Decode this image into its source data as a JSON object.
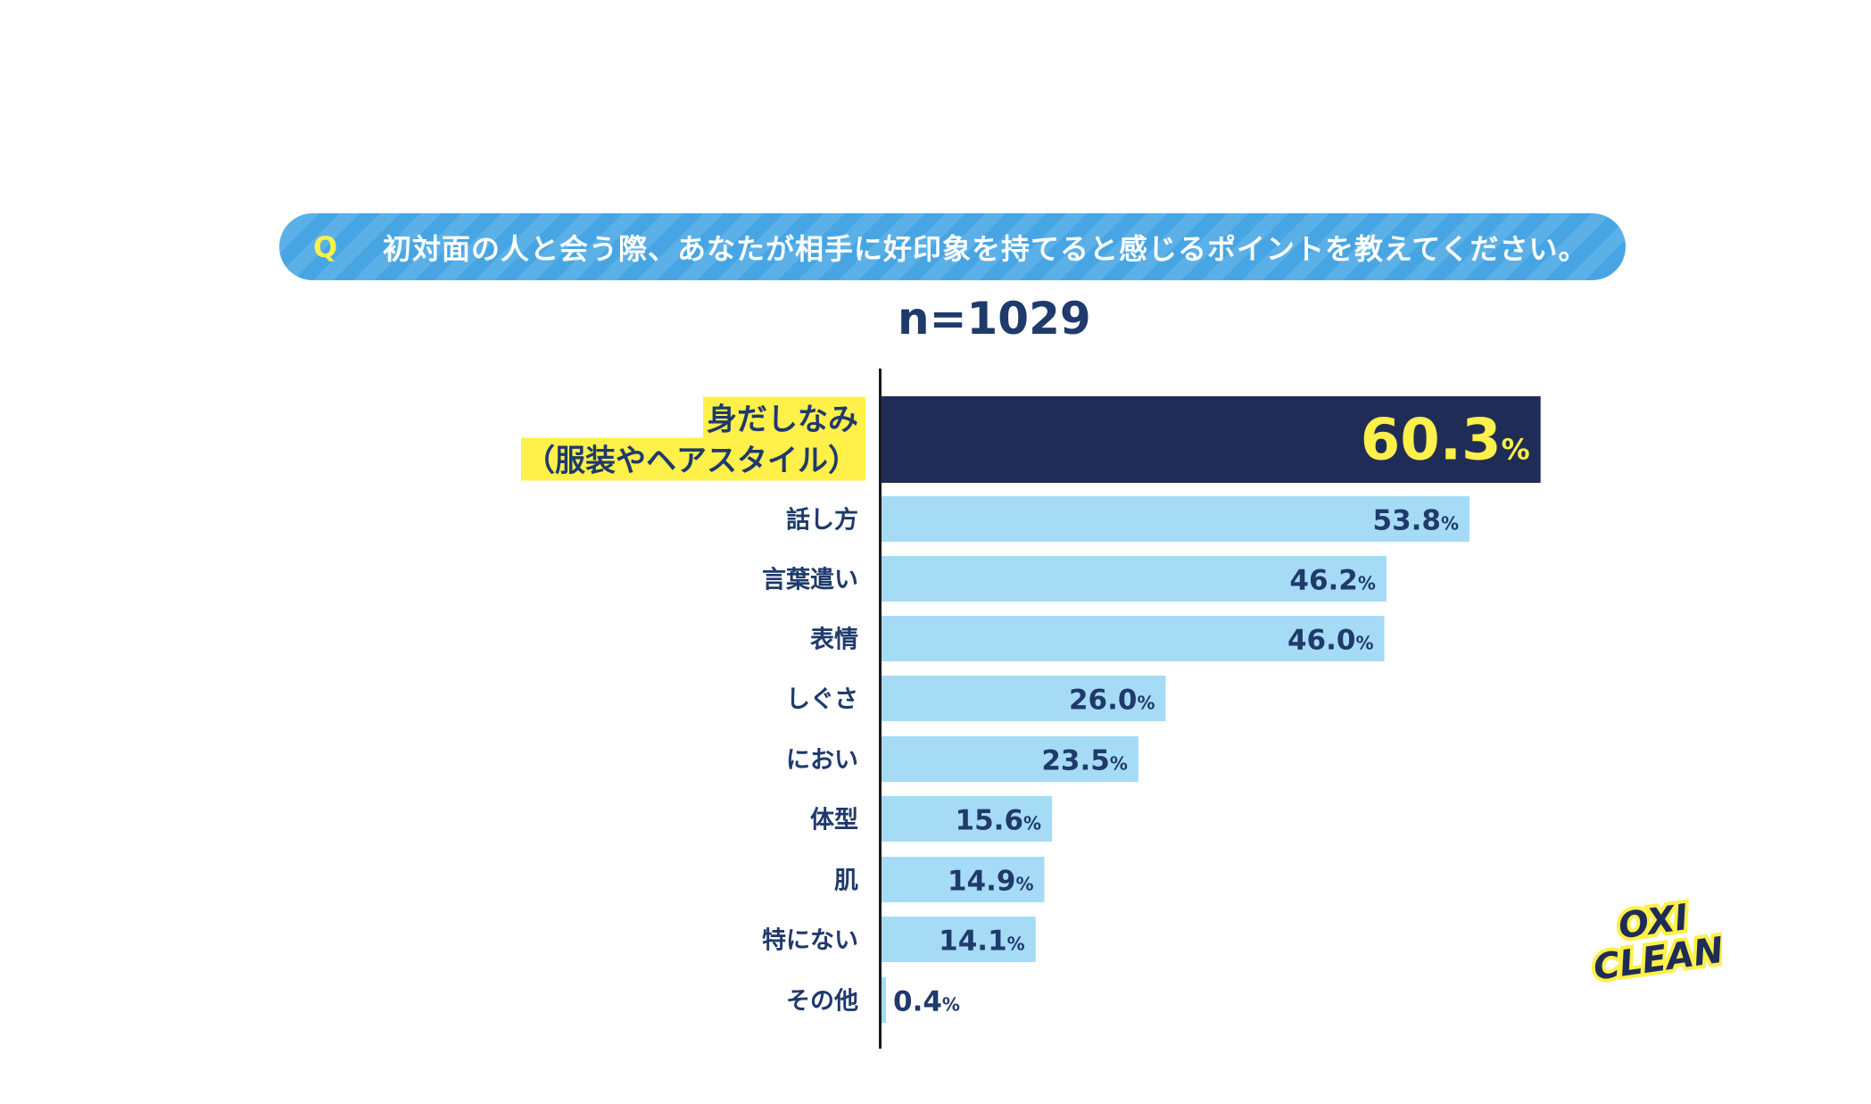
{
  "question": {
    "mark": "Q",
    "text": "初対面の人と会う際、あなたが相手に好印象を持てると感じるポイントを教えてください。"
  },
  "sample_size": "n=1029",
  "colors": {
    "top_bar": "#1f2d56",
    "bar": "#a6dbf6",
    "label_text": "#1f3a6b",
    "highlight": "#fff04a",
    "question_bg": "#47a5e4"
  },
  "chart_data": {
    "type": "bar",
    "orientation": "horizontal",
    "unit": "%",
    "categories": [
      "身だしなみ\n（服装やヘアスタイル）",
      "話し方",
      "言葉遣い",
      "表情",
      "しぐさ",
      "におい",
      "体型",
      "肌",
      "特にない",
      "その他"
    ],
    "values": [
      60.3,
      53.8,
      46.2,
      46.0,
      26.0,
      23.5,
      15.6,
      14.9,
      14.1,
      0.4
    ],
    "value_labels": [
      "60.3",
      "53.8",
      "46.2",
      "46.0",
      "26.0",
      "23.5",
      "15.6",
      "14.9",
      "14.1",
      "0.4"
    ],
    "highlighted_index": 0
  },
  "logo": {
    "line1": "OXI",
    "line2": "CLEAN"
  }
}
